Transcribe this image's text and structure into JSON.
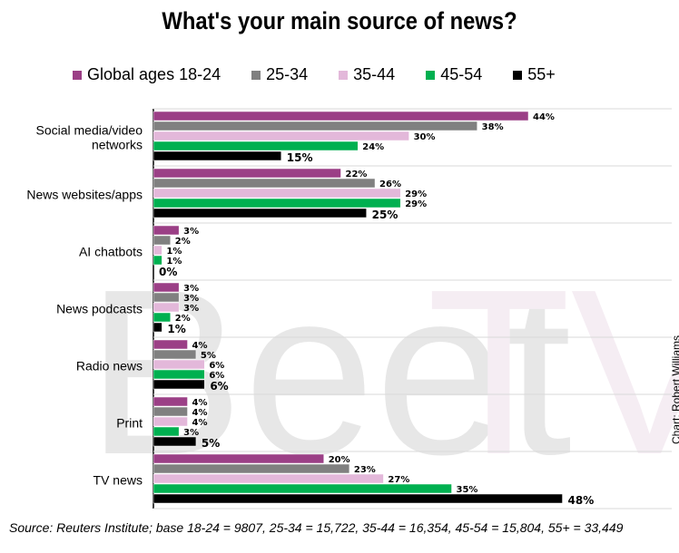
{
  "chart_data": {
    "type": "bar",
    "orientation": "horizontal",
    "title": "What's your main source of news?",
    "categories": [
      "Social media/video networks",
      "News websites/apps",
      "AI chatbots",
      "News podcasts",
      "Radio news",
      "Print",
      "TV news"
    ],
    "series": [
      {
        "name": "Global ages 18-24",
        "color": "#9b3f86",
        "values": [
          44,
          22,
          3,
          3,
          4,
          4,
          20
        ]
      },
      {
        "name": "25-34",
        "color": "#808080",
        "values": [
          38,
          26,
          2,
          3,
          5,
          4,
          23
        ]
      },
      {
        "name": "35-44",
        "color": "#e3b8da",
        "values": [
          30,
          29,
          1,
          3,
          6,
          4,
          27
        ]
      },
      {
        "name": "45-54",
        "color": "#00b050",
        "values": [
          24,
          29,
          1,
          2,
          6,
          3,
          35
        ]
      },
      {
        "name": "55+",
        "color": "#000000",
        "values": [
          15,
          25,
          0,
          1,
          6,
          5,
          48
        ]
      }
    ],
    "value_suffix": "%",
    "xlim": [
      0,
      50
    ],
    "legend": "top",
    "grid": false
  },
  "source": "Source: Reuters Institute; base 18-24 = 9807, 25-34 = 15,722, 35-44 = 16,354, 45-54 = 15,804, 55+ = 33,449",
  "credit": "Chart: Robert Williams"
}
